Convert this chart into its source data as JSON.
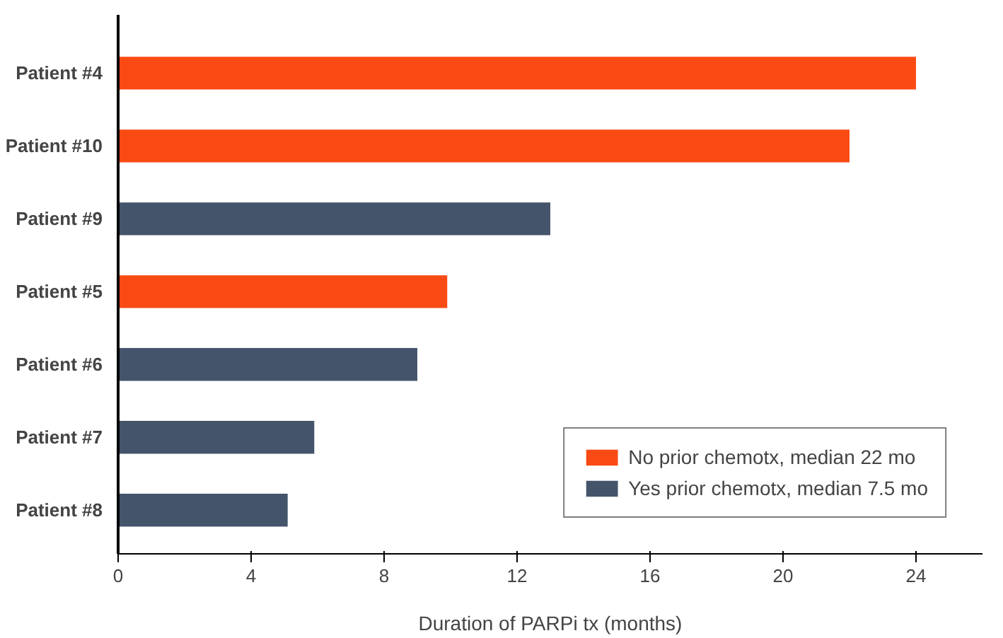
{
  "chart_data": {
    "type": "bar",
    "orientation": "horizontal",
    "xlabel": "Duration of PARPi tx (months)",
    "categories": [
      "Patient #4",
      "Patient #10",
      "Patient #9",
      "Patient #5",
      "Patient #6",
      "Patient #7",
      "Patient #8"
    ],
    "series": [
      {
        "name": "No prior chemotx, median 22 mo",
        "color": "#fa4a14",
        "values": [
          24,
          22,
          null,
          9.9,
          null,
          null,
          null
        ]
      },
      {
        "name": "Yes prior chemotx, median 7.5 mo",
        "color": "#44546a",
        "values": [
          null,
          null,
          13,
          null,
          9,
          5.9,
          5.1
        ]
      }
    ],
    "xlim": [
      0,
      26
    ],
    "xticks": [
      0,
      4,
      8,
      12,
      16,
      20,
      24
    ],
    "grid": false,
    "legend": "bottom right"
  }
}
